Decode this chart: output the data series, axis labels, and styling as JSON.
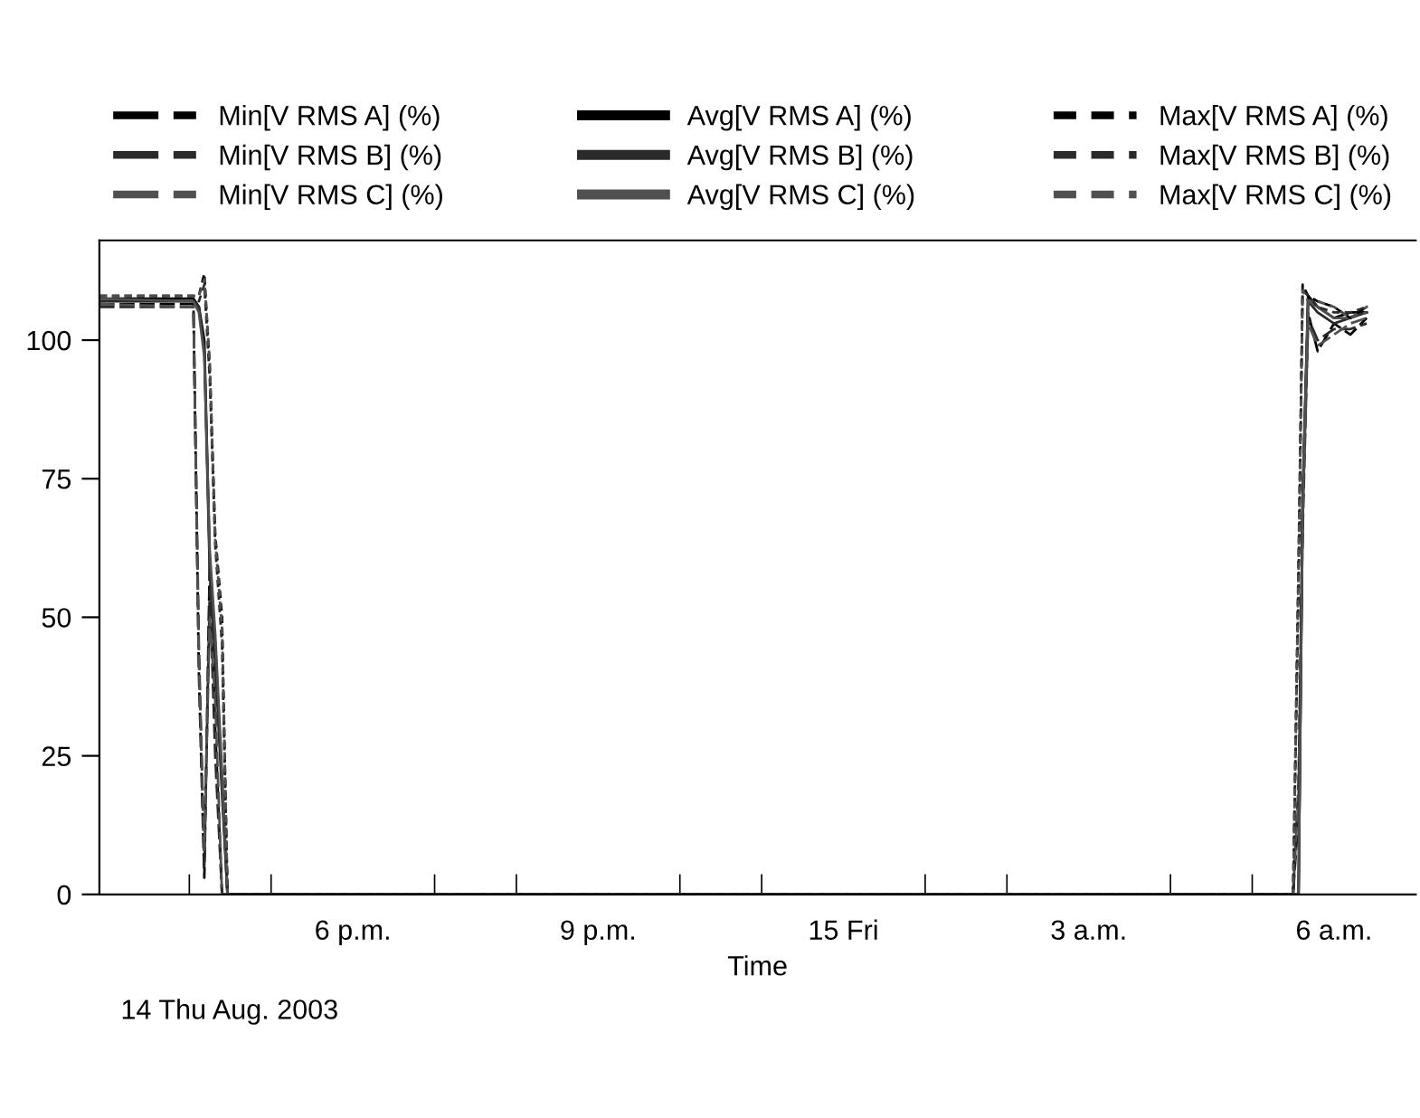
{
  "chart_data": {
    "type": "line",
    "xlabel": "Time",
    "annotations": [
      "14 Thu Aug. 2003"
    ],
    "xlim": [
      "2003-08-14T14:54",
      "2003-08-15T07:00"
    ],
    "ylim": [
      0,
      118
    ],
    "xticks": [
      {
        "value": "2003-08-14T16:00",
        "label": null
      },
      {
        "value": "2003-08-14T17:00",
        "label": null
      },
      {
        "value": "2003-08-14T18:00",
        "label": "6 p.m."
      },
      {
        "value": "2003-08-14T19:00",
        "label": null
      },
      {
        "value": "2003-08-14T20:00",
        "label": null
      },
      {
        "value": "2003-08-14T21:00",
        "label": "9 p.m."
      },
      {
        "value": "2003-08-14T22:00",
        "label": null
      },
      {
        "value": "2003-08-14T23:00",
        "label": null
      },
      {
        "value": "2003-08-15T00:00",
        "label": "15 Fri"
      },
      {
        "value": "2003-08-15T01:00",
        "label": null
      },
      {
        "value": "2003-08-15T02:00",
        "label": null
      },
      {
        "value": "2003-08-15T03:00",
        "label": "3 a.m."
      },
      {
        "value": "2003-08-15T04:00",
        "label": null
      },
      {
        "value": "2003-08-15T05:00",
        "label": null
      },
      {
        "value": "2003-08-15T06:00",
        "label": "6 a.m."
      }
    ],
    "yticks": [
      0,
      25,
      50,
      75,
      100
    ],
    "x": [
      "2003-08-14T14:54",
      "2003-08-14T16:03",
      "2003-08-14T16:07",
      "2003-08-14T16:11",
      "2003-08-14T16:15",
      "2003-08-14T16:19",
      "2003-08-14T16:24",
      "2003-08-14T16:28",
      "2003-08-15T05:30",
      "2003-08-15T05:34",
      "2003-08-15T05:37",
      "2003-08-15T05:41",
      "2003-08-15T05:48",
      "2003-08-15T06:00",
      "2003-08-15T06:12",
      "2003-08-15T06:24"
    ],
    "legend": "top",
    "grid": false,
    "marker": "none",
    "series": [
      {
        "name": "Min[V RMS A] (%)",
        "color": "#000000",
        "line_style": "dashed",
        "values": [
          106.5,
          106.5,
          40,
          3,
          60,
          30,
          0,
          0,
          0,
          15,
          70,
          105,
          98,
          103,
          101,
          104
        ]
      },
      {
        "name": "Min[V RMS B] (%)",
        "color": "#2a2a2a",
        "line_style": "dashed",
        "values": [
          106,
          106,
          45,
          5,
          55,
          25,
          0,
          0,
          0,
          20,
          65,
          104,
          100,
          102,
          102,
          103
        ]
      },
      {
        "name": "Min[V RMS C] (%)",
        "color": "#505050",
        "line_style": "dashed",
        "values": [
          106.5,
          106,
          42,
          8,
          50,
          35,
          0,
          0,
          0,
          18,
          68,
          103,
          99,
          101,
          103,
          104
        ]
      },
      {
        "name": "Avg[V RMS A] (%)",
        "color": "#000000",
        "line_style": "solid",
        "values": [
          107.5,
          107.5,
          106,
          100,
          60,
          45,
          20,
          0,
          0,
          0,
          70,
          108,
          106,
          104,
          105,
          105
        ]
      },
      {
        "name": "Avg[V RMS B] (%)",
        "color": "#2a2a2a",
        "line_style": "solid",
        "values": [
          107,
          107,
          106,
          98,
          58,
          42,
          18,
          0,
          0,
          0,
          72,
          107,
          105,
          103,
          104,
          105
        ]
      },
      {
        "name": "Avg[V RMS C] (%)",
        "color": "#505050",
        "line_style": "solid",
        "values": [
          107.5,
          107,
          105,
          97,
          62,
          47,
          22,
          0,
          0,
          0,
          68,
          107,
          106,
          104,
          104,
          106
        ]
      },
      {
        "name": "Max[V RMS A] (%)",
        "color": "#000000",
        "line_style": "dotted",
        "values": [
          108,
          108,
          108,
          112,
          95,
          65,
          50,
          0,
          0,
          60,
          110,
          108,
          107,
          106,
          104,
          106
        ]
      },
      {
        "name": "Max[V RMS B] (%)",
        "color": "#2a2a2a",
        "line_style": "dotted",
        "values": [
          108,
          108,
          107,
          110,
          93,
          63,
          45,
          0,
          0,
          55,
          109,
          108,
          106,
          105,
          105,
          106
        ]
      },
      {
        "name": "Max[V RMS C] (%)",
        "color": "#505050",
        "line_style": "dotted",
        "values": [
          108,
          108,
          108,
          111,
          96,
          64,
          48,
          0,
          0,
          58,
          109,
          107,
          107,
          106,
          104,
          105
        ]
      }
    ]
  }
}
